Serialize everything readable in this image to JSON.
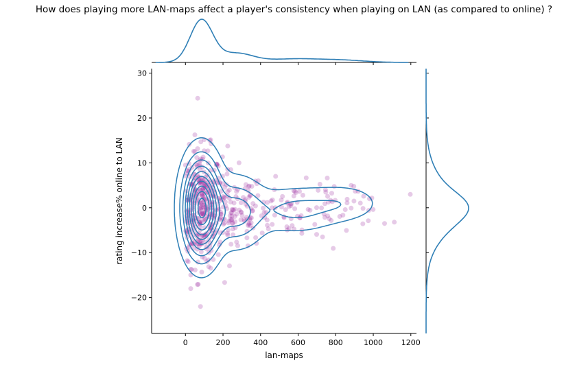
{
  "chart_data": {
    "type": "scatter",
    "title": "How does playing more LAN-maps affect a player's consistency when playing on LAN (as compared to online) ?",
    "xlabel": "lan-maps",
    "ylabel": "rating increase% online to LAN",
    "xlim": [
      -180,
      1230
    ],
    "ylim": [
      -28,
      31
    ],
    "xticks": [
      0,
      200,
      400,
      600,
      800,
      1000,
      1200
    ],
    "yticks": [
      -20,
      -10,
      0,
      10,
      20,
      30
    ],
    "grid": false,
    "colors": {
      "points": "#9b2aa0",
      "kde": "#2f7fb6"
    },
    "point_alpha": 0.25,
    "scatter_clusters": [
      {
        "x_center": 85,
        "x_spread": 55,
        "y_center": 0,
        "y_spread": 6.5,
        "n": 330
      },
      {
        "x_center": 260,
        "x_spread": 80,
        "y_center": -1,
        "y_spread": 4.5,
        "n": 110
      },
      {
        "x_center": 560,
        "x_spread": 140,
        "y_center": -0.5,
        "y_spread": 3,
        "n": 75
      },
      {
        "x_center": 850,
        "x_spread": 110,
        "y_center": 1,
        "y_spread": 2.5,
        "n": 35
      }
    ],
    "scatter_extremes": [
      {
        "x": 65,
        "y": 24.4
      },
      {
        "x": 80,
        "y": -22
      },
      {
        "x": 1060,
        "y": -3.5
      },
      {
        "x": 730,
        "y": -6.5
      },
      {
        "x": 480,
        "y": 7
      }
    ],
    "kde_components": [
      {
        "x_center": 85,
        "x_spread": 60,
        "y_center": 0,
        "y_spread": 6.5,
        "weight": 0.62
      },
      {
        "x_center": 270,
        "x_spread": 90,
        "y_center": -1,
        "y_spread": 4.5,
        "weight": 0.2
      },
      {
        "x_center": 580,
        "x_spread": 140,
        "y_center": -0.5,
        "y_spread": 3,
        "weight": 0.12
      },
      {
        "x_center": 840,
        "x_spread": 120,
        "y_center": 1,
        "y_spread": 2.5,
        "weight": 0.06
      }
    ],
    "kde_levels": 10
  }
}
